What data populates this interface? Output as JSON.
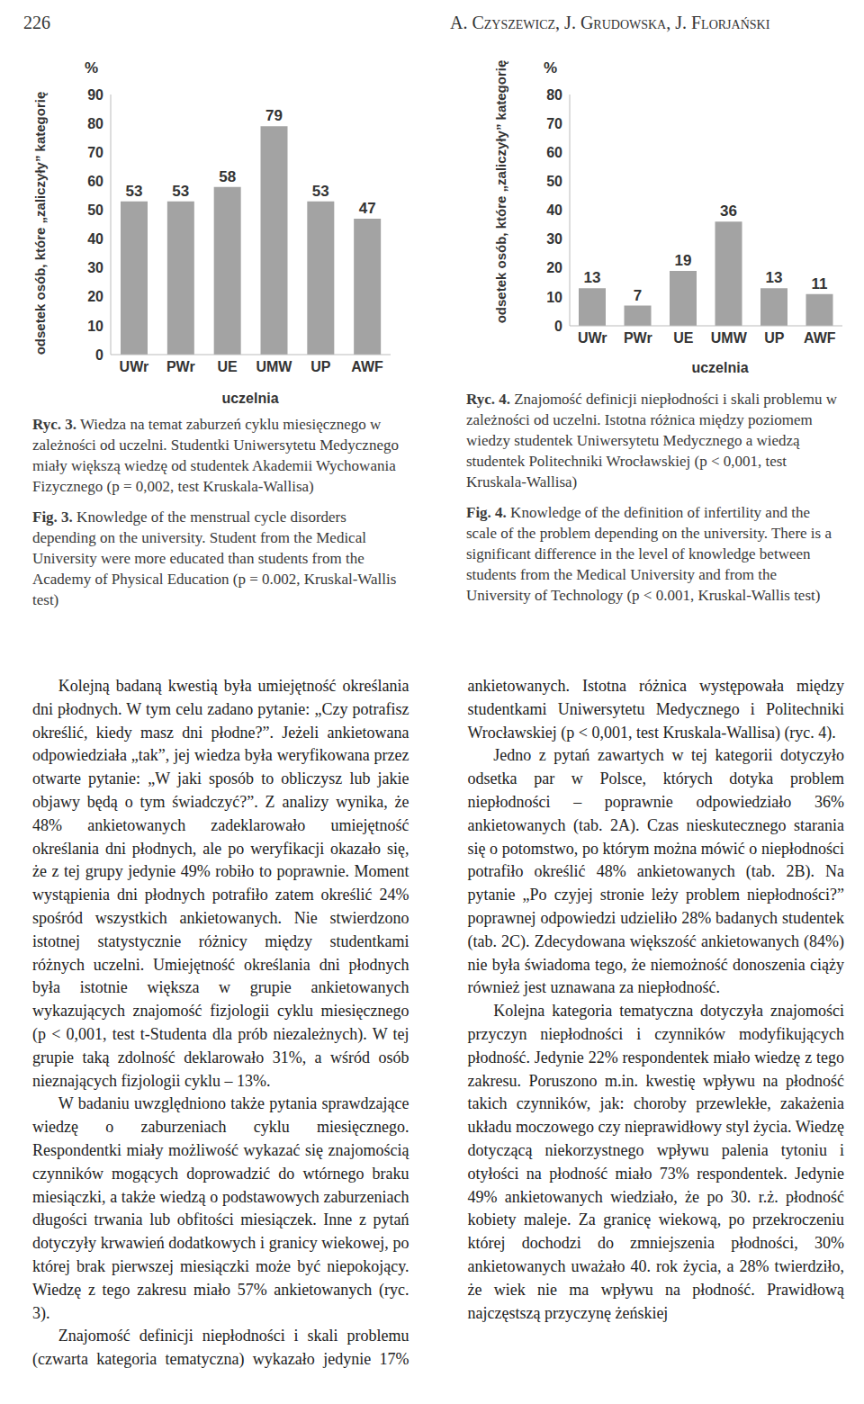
{
  "header": {
    "page": "226",
    "authors": "A. Czyszewicz, J. Grudowska, J. Florjański"
  },
  "chart_data": [
    {
      "type": "bar",
      "categories": [
        "UWr",
        "PWr",
        "UE",
        "UMW",
        "UP",
        "AWF"
      ],
      "values": [
        53,
        53,
        58,
        79,
        53,
        47
      ],
      "color": "#a3a3a3",
      "ylim": [
        0,
        90
      ],
      "yticks": [
        0,
        10,
        20,
        30,
        40,
        50,
        60,
        70,
        80,
        90
      ],
      "data_labels": true,
      "y_label": "odsetek osób, które „zaliczyły” kategorię",
      "y_unit": "%",
      "x_label": "uczelnia"
    },
    {
      "type": "bar",
      "categories": [
        "UWr",
        "PWr",
        "UE",
        "UMW",
        "UP",
        "AWF"
      ],
      "values": [
        13,
        7,
        19,
        36,
        13,
        11
      ],
      "color": "#a3a3a3",
      "ylim": [
        0,
        80
      ],
      "yticks": [
        0,
        10,
        20,
        30,
        40,
        50,
        60,
        70,
        80
      ],
      "data_labels": true,
      "y_label": "odsetek osób, które „zaliczyły” kategorię",
      "y_unit": "%",
      "x_label": "uczelnia"
    }
  ],
  "captions": [
    {
      "label_pl": "Ryc. 3.",
      "text_pl": "Wiedza na temat zaburzeń cyklu miesięcznego w zależności od uczelni. Studentki Uniwersytetu Medycznego miały większą wiedzę od studentek Akademii Wychowania Fizycznego (p = 0,002, test Kruskala-Wallisa)",
      "label_en": "Fig. 3.",
      "text_en": "Knowledge of the menstrual cycle disorders depending on the university. Student from the Medical University were more educated than students from the Academy of Physical Education (p = 0.002, Kruskal-Wallis test)"
    },
    {
      "label_pl": "Ryc. 4.",
      "text_pl": "Znajomość definicji niepłodności i skali problemu w zależności od uczelni. Istotna różnica między poziomem wiedzy studentek Uniwersytetu Medycznego a wiedzą studentek Politechniki Wrocławskiej (p < 0,001, test Kruskala-Wallisa)",
      "label_en": "Fig. 4.",
      "text_en": "Knowledge of the definition of infertility and the scale of the problem depending on the university. There is a significant difference in the level of knowledge between students from the Medical University and from the University of Technology (p < 0.001, Kruskal-Wallis test)"
    }
  ],
  "body": {
    "paragraphs": [
      "Kolejną badaną kwestią była umiejętność określania dni płodnych. W tym celu zadano pytanie: „Czy potrafisz określić, kiedy masz dni płodne?”. Jeżeli ankietowana odpowiedziała „tak”, jej wiedza była weryfikowana przez otwarte pytanie: „W jaki sposób to obliczysz lub jakie objawy będą o tym świadczyć?”. Z analizy wynika, że 48% ankietowanych zadeklarowało umiejętność określania dni płodnych, ale po weryfikacji okazało się, że z tej grupy jedynie 49% robiło to poprawnie. Moment wystąpienia dni płodnych potrafiło zatem określić 24% spośród wszystkich ankietowanych. Nie stwierdzono istotnej statystycznie różnicy między studentkami różnych uczelni. Umiejętność określania dni płodnych była istotnie większa w grupie ankietowanych wykazujących znajomość fizjologii cyklu miesięcznego (p < 0,001, test t-Studenta dla prób niezależnych). W tej grupie taką zdolność deklarowało 31%, a wśród osób nieznających fizjologii cyklu – 13%.",
      "W badaniu uwzględniono także pytania sprawdzające wiedzę o zaburzeniach cyklu miesięcznego. Respondentki miały możliwość wykazać się znajomością czynników mogących doprowadzić do wtórnego braku miesiączki, a także wiedzą o podstawowych zaburzeniach długości trwania lub obfitości miesiączek. Inne z pytań dotyczyły krwawień dodatkowych i granicy wiekowej, po której brak pierwszej miesiączki może być niepokojący. Wiedzę z tego zakresu miało 57% ankietowanych (ryc. 3).",
      "Znajomość definicji niepłodności i skali problemu (czwarta kategoria tematyczna) wykazało jedynie 17% ankietowanych. Istotna różnica występowała między studentkami Uniwersytetu Medycznego i Politechniki Wrocławskiej (p < 0,001, test Kruskala-Wallisa) (ryc. 4).",
      "Jedno z pytań zawartych w tej kategorii dotyczyło odsetka par w Polsce, których dotyka problem niepłodności – poprawnie odpowiedziało 36% ankietowanych (tab. 2A). Czas nieskutecznego starania się o potomstwo, po którym można mówić o niepłodności potrafiło określić 48% ankietowanych (tab. 2B). Na pytanie „Po czyjej stronie leży problem niepłodności?” poprawnej odpowiedzi udzieliło 28% badanych studentek (tab. 2C). Zdecydowana większość ankietowanych (84%) nie była świadoma tego, że niemożność donoszenia ciąży również jest uznawana za niepłodność.",
      "Kolejna kategoria tematyczna dotyczyła znajomości przyczyn niepłodności i czynników modyfikujących płodność. Jedynie 22% respondentek miało wiedzę z tego zakresu. Poruszono m.in. kwestię wpływu na płodność takich czynników, jak: choroby przewlekłe, zakażenia układu moczowego czy nieprawidłowy styl życia. Wiedzę dotyczącą niekorzystnego wpływu palenia tytoniu i otyłości na płodność miało 73% respondentek. Jedynie 49% ankietowanych wiedziało, że po 30. r.ż. płodność kobiety maleje. Za granicę wiekową, po przekroczeniu której dochodzi do zmniejszenia płodności, 30% ankietowanych uważało 40. rok życia, a 28% twierdziło, że wiek nie ma wpływu na płodność. Prawidłową najczęstszą przyczynę żeńskiej"
    ]
  }
}
